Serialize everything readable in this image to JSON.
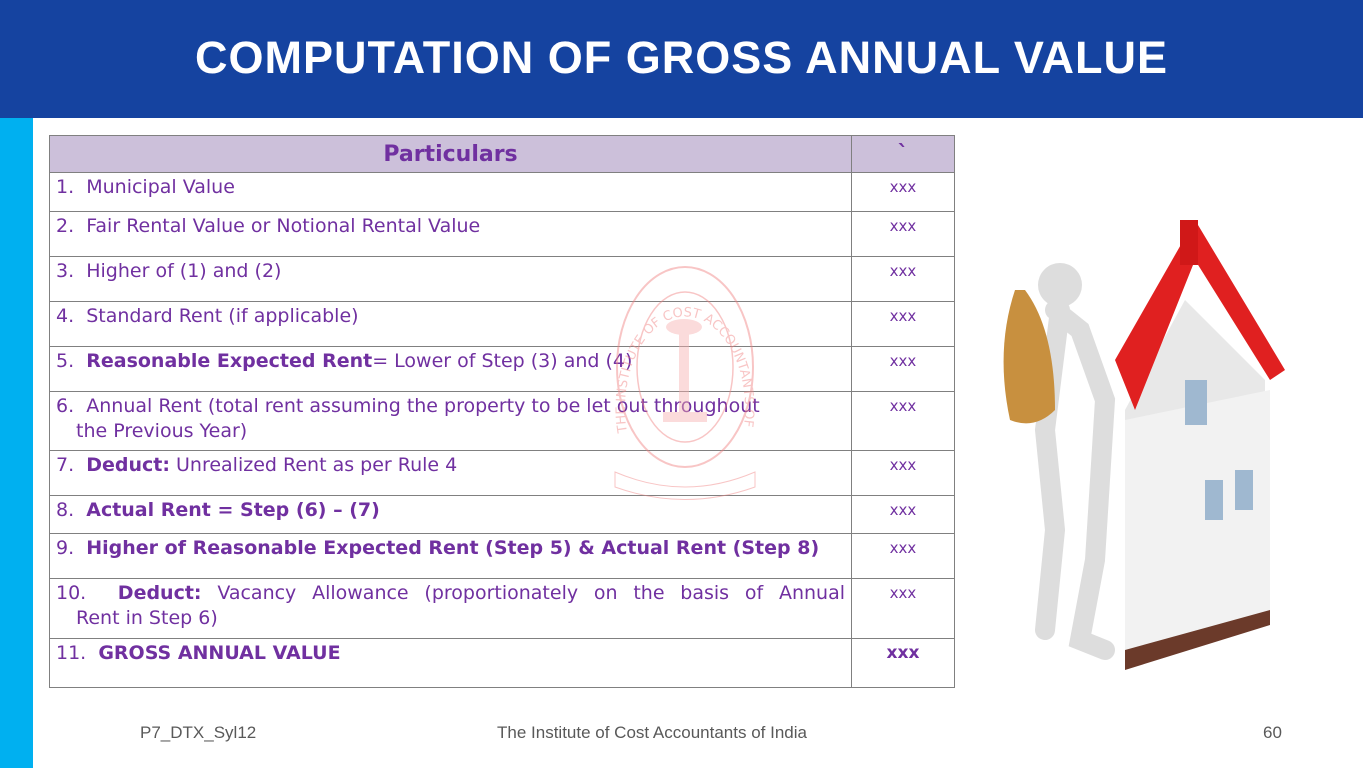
{
  "title": "COMPUTATION OF GROSS ANNUAL VALUE",
  "table": {
    "headers": [
      "Particulars",
      "`"
    ],
    "rows": [
      {
        "num": "1.",
        "bold": "",
        "text": "Municipal  Value",
        "value": "xxx"
      },
      {
        "num": "2.",
        "bold": "",
        "text": "Fair Rental Value or Notional Rental Value",
        "value": "xxx"
      },
      {
        "num": "3.",
        "bold": "",
        "text": "Higher of (1) and (2)",
        "value": "xxx"
      },
      {
        "num": "4.",
        "bold": "",
        "text": "Standard  Rent (if applicable)",
        "value": "xxx"
      },
      {
        "num": "5.",
        "bold": "Reasonable  Expected  Rent",
        "text": "= Lower of Step (3) and (4)",
        "value": "xxx"
      },
      {
        "num": "6.",
        "bold": "",
        "text": "Annual Rent (total rent assuming the property  to be let out throughout",
        "text2": "the Previous Year)",
        "value": "xxx"
      },
      {
        "num": "7.",
        "bold": "Deduct:",
        "text": " Unrealized  Rent as per Rule 4",
        "value": "xxx"
      },
      {
        "num": "8.",
        "bold": "Actual Rent = Step (6) – (7)",
        "text": "",
        "value": "xxx"
      },
      {
        "num": "9.",
        "bold": "Higher of Reasonable  Expected  Rent (Step 5) & Actual Rent (Step 8)",
        "text": "",
        "value": "xxx"
      },
      {
        "num": "10.",
        "bold": "Deduct:",
        "text": " Vacancy  Allowance  (proportionately  on  the  basis  of  Annual",
        "text2": "Rent in Step 6)",
        "value": "xxx"
      },
      {
        "num": "11.",
        "bold": "GROSS ANNUAL VALUE",
        "text": "",
        "value": "xxx"
      }
    ]
  },
  "watermark": "THE INSTITUTE OF COST ACCOUNTANTS OF INDIA",
  "footer": {
    "left": "P7_DTX_Syl12",
    "center": "The Institute of Cost Accountants of India",
    "page": "60"
  }
}
